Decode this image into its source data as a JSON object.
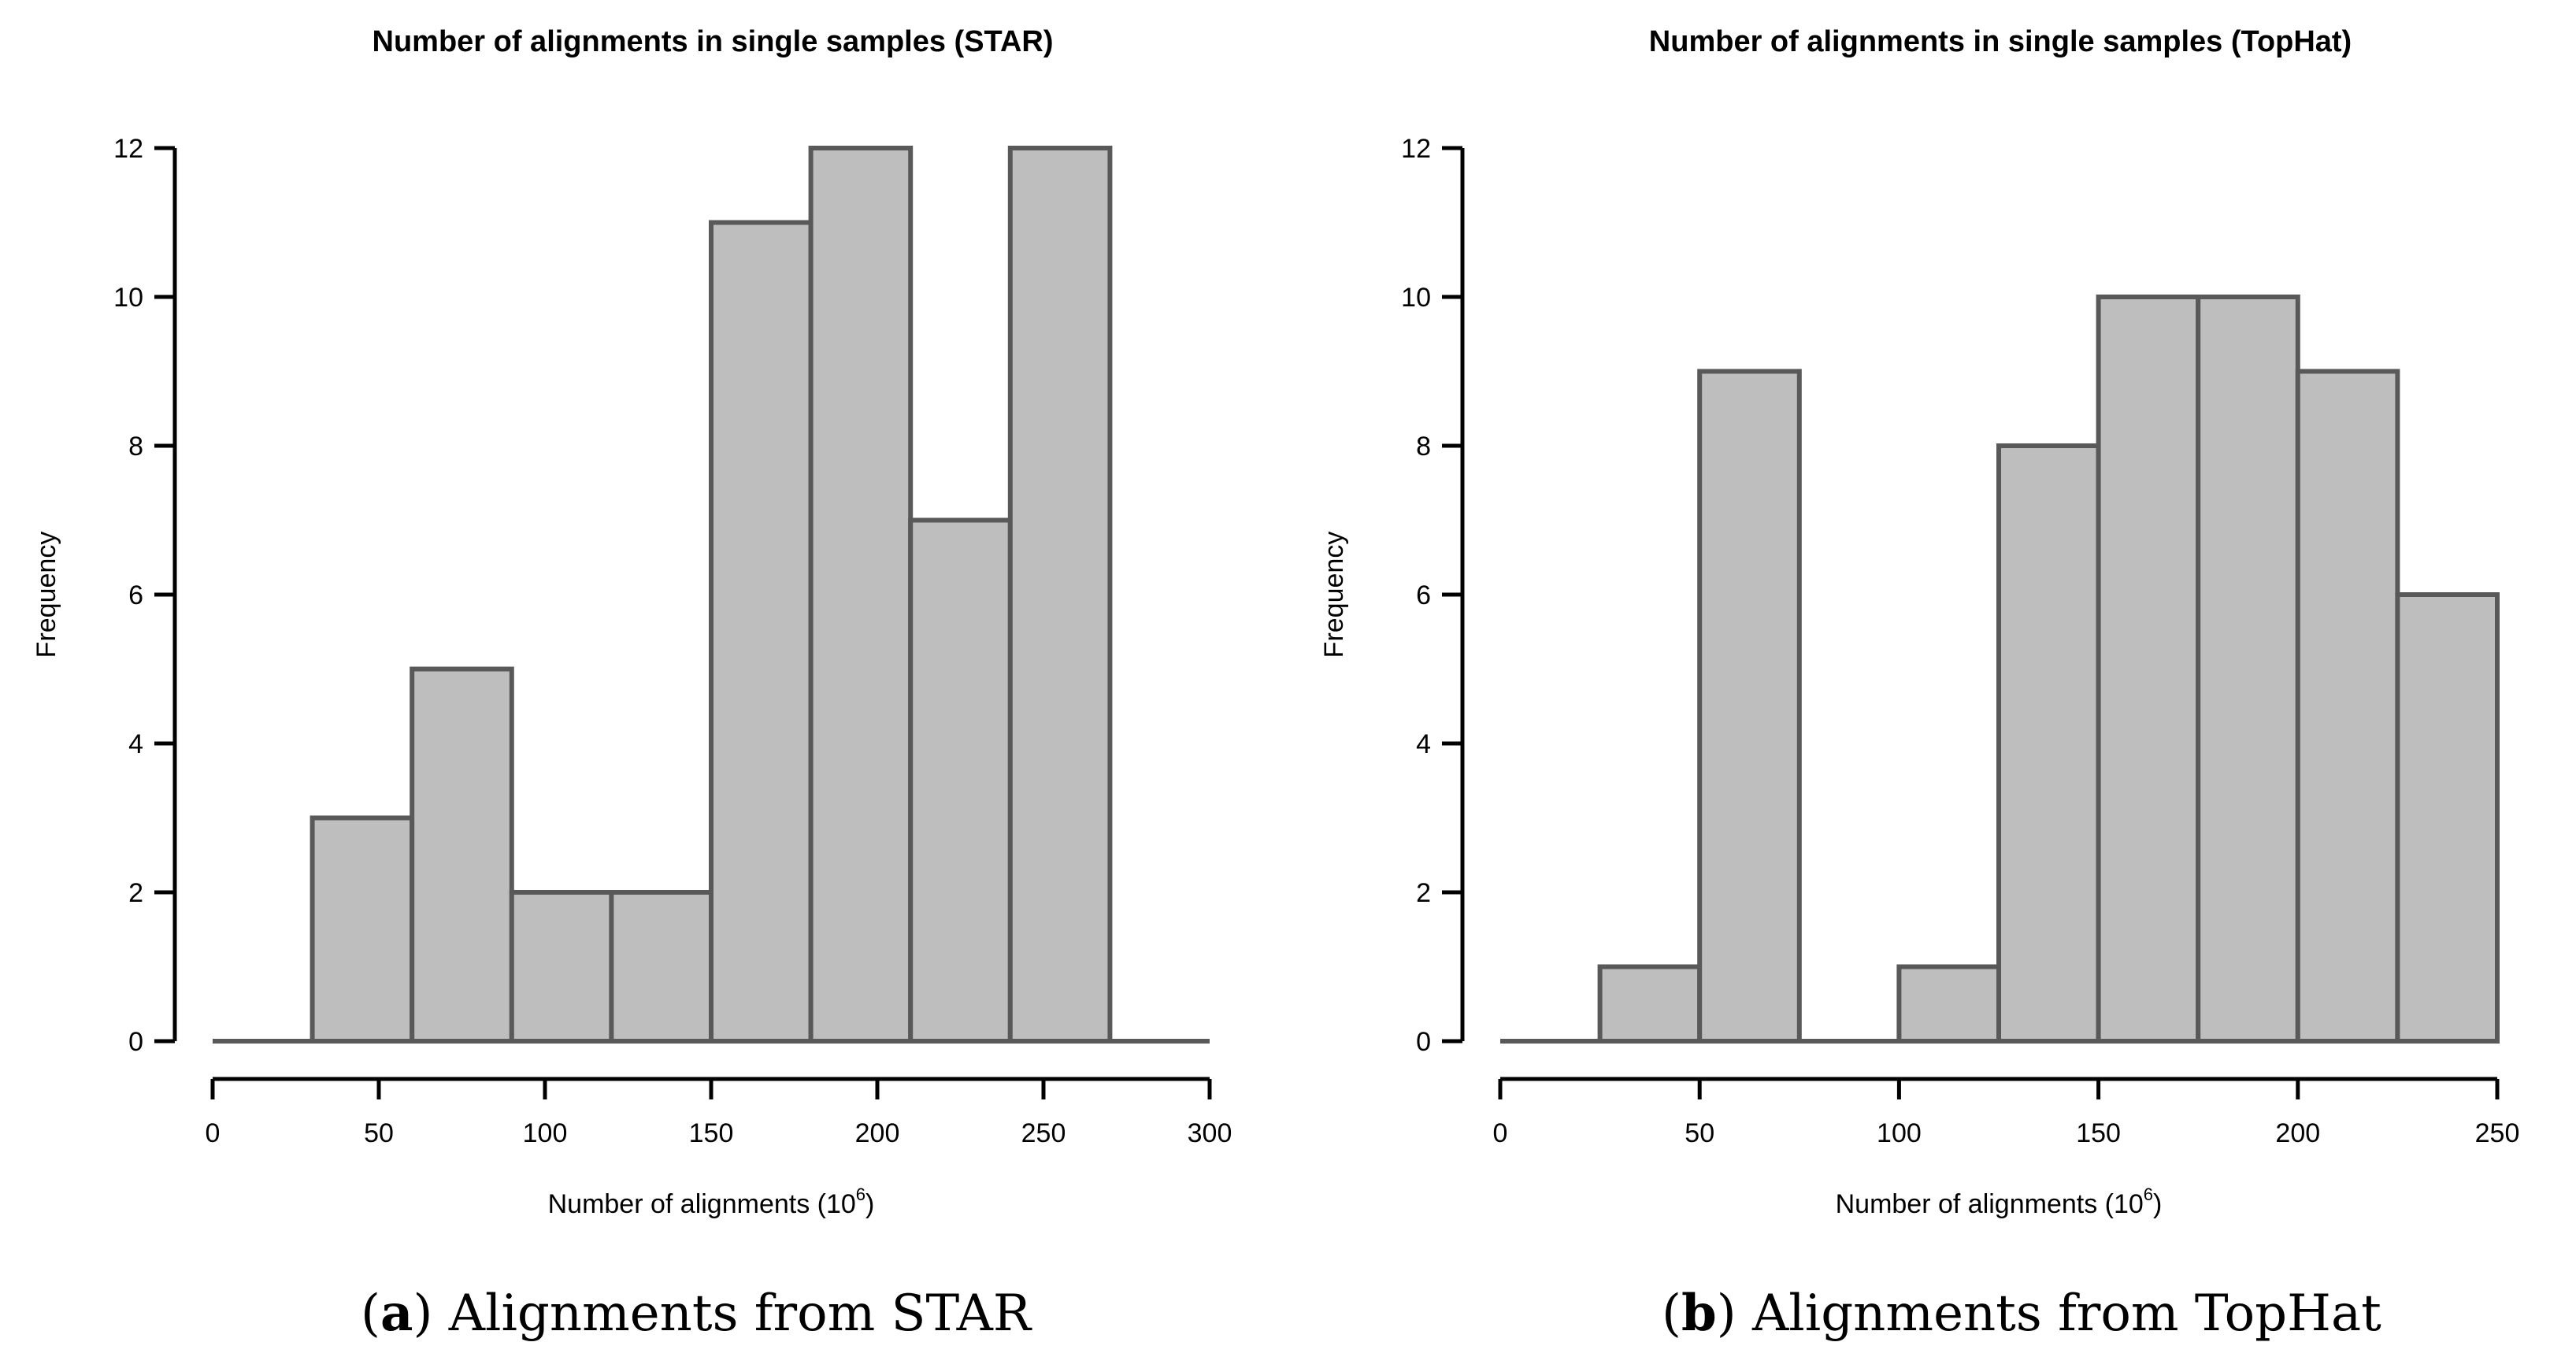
{
  "chart_data": [
    {
      "type": "bar",
      "subtype": "histogram",
      "title": "Number of alignments in single samples (STAR)",
      "xlabel": "Number of alignments (10",
      "xlabel_sup": "6",
      "xlabel_close": ")",
      "ylabel": "Frequency",
      "bin_edges": [
        0,
        30,
        60,
        90,
        120,
        150,
        180,
        210,
        240,
        270,
        300
      ],
      "values": [
        0,
        3,
        5,
        2,
        2,
        11,
        12,
        7,
        12,
        0
      ],
      "xlim": [
        0,
        300
      ],
      "ylim": [
        0,
        12
      ],
      "xticks": [
        0,
        50,
        100,
        150,
        200,
        250,
        300
      ],
      "yticks": [
        0,
        2,
        4,
        6,
        8,
        10,
        12
      ],
      "bar_color": "#bebebe",
      "edge_color": "#595959",
      "grid": false,
      "caption_letter": "a",
      "caption_text": "Alignments from STAR"
    },
    {
      "type": "bar",
      "subtype": "histogram",
      "title": "Number of alignments in single samples (TopHat)",
      "xlabel": "Number of alignments (10",
      "xlabel_sup": "6",
      "xlabel_close": ")",
      "ylabel": "Frequency",
      "bin_edges": [
        0,
        25,
        50,
        75,
        100,
        125,
        150,
        175,
        200,
        225,
        250
      ],
      "values": [
        0,
        1,
        9,
        0,
        1,
        8,
        10,
        10,
        9,
        6
      ],
      "xlim": [
        0,
        250
      ],
      "ylim": [
        0,
        12
      ],
      "xticks": [
        0,
        50,
        100,
        150,
        200,
        250
      ],
      "yticks": [
        0,
        2,
        4,
        6,
        8,
        10,
        12
      ],
      "bar_color": "#bebebe",
      "edge_color": "#595959",
      "grid": false,
      "caption_letter": "b",
      "caption_text": "Alignments from TopHat"
    }
  ]
}
